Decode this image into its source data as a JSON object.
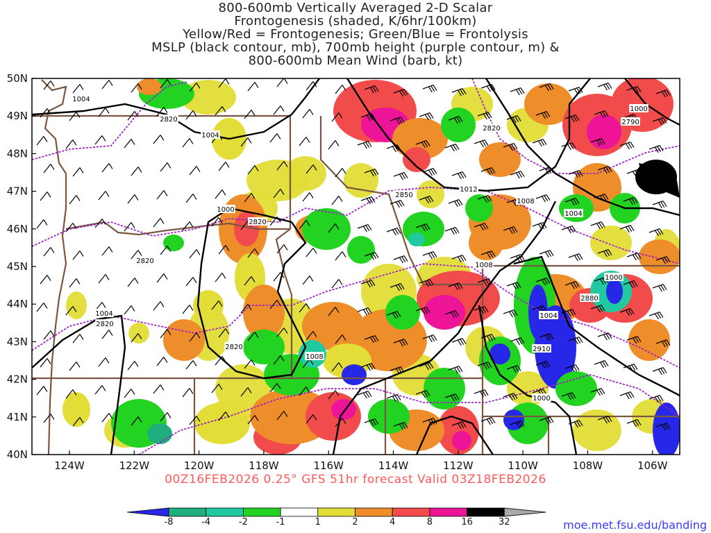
{
  "title": {
    "line1": "800-600mb Vertically Averaged 2-D Scalar",
    "line2": "Frontogenesis (shaded, K/6hr/100km)",
    "line3": "Yellow/Red = Frontogenesis;  Green/Blue = Frontolysis",
    "line4": "MSLP (black contour, mb), 700mb height (purple contour, m) &",
    "line5": "800-600mb Mean Wind (barb, kt)"
  },
  "footer": "00Z16FEB2026 0.25° GFS 51hr forecast Valid 03Z18FEB2026",
  "credit": "moe.met.fsu.edu/banding",
  "map": {
    "lat_labels": [
      "50N",
      "49N",
      "48N",
      "47N",
      "46N",
      "45N",
      "44N",
      "43N",
      "42N",
      "41N",
      "40N"
    ],
    "lon_labels": [
      "124W",
      "122W",
      "120W",
      "118W",
      "116W",
      "114W",
      "112W",
      "110W",
      "108W",
      "106W"
    ],
    "mslp_labels": [
      "1004",
      "1004",
      "1000",
      "1012",
      "1008",
      "1004",
      "1008",
      "1000",
      "1004",
      "1000",
      "1008",
      "1000",
      "1004"
    ],
    "height_labels": [
      "2820",
      "2820",
      "2820",
      "2850",
      "2820",
      "2790",
      "2820",
      "2820",
      "2820",
      "2880",
      "2910"
    ]
  },
  "colorbar": {
    "labels": [
      "-8",
      "-4",
      "-2",
      "-1",
      "1",
      "2",
      "4",
      "8",
      "16",
      "32"
    ],
    "colors": [
      "#2727e8",
      "#1fae7e",
      "#20c9a0",
      "#22d322",
      "#ffffff",
      "#e3dd37",
      "#ee8e2b",
      "#f24b4b",
      "#ed1498",
      "#000000",
      "#a8a8a8"
    ]
  },
  "colors": {
    "mslp": "#000000",
    "height": "#a020c8",
    "borders": "#7a5540",
    "footer": "#ff5a5a",
    "credit": "#3a3aff"
  }
}
